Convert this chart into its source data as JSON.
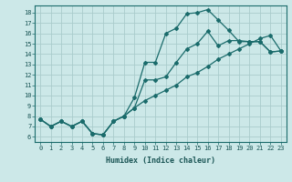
{
  "xlabel": "Humidex (Indice chaleur)",
  "background_color": "#cce8e8",
  "grid_color": "#aacccc",
  "line_color": "#1a6b6b",
  "marker": "D",
  "markersize": 2.0,
  "linewidth": 0.9,
  "xlim": [
    -0.5,
    23.5
  ],
  "ylim": [
    5.5,
    18.7
  ],
  "xticks": [
    0,
    1,
    2,
    3,
    4,
    5,
    6,
    7,
    8,
    9,
    10,
    11,
    12,
    13,
    14,
    15,
    16,
    17,
    18,
    19,
    20,
    21,
    22,
    23
  ],
  "yticks": [
    6,
    7,
    8,
    9,
    10,
    11,
    12,
    13,
    14,
    15,
    16,
    17,
    18
  ],
  "series": [
    {
      "x": [
        0,
        1,
        2,
        3,
        4,
        5,
        6,
        7,
        8,
        9,
        10,
        11,
        12,
        13,
        14,
        15,
        16,
        17,
        18,
        19,
        20,
        21,
        22,
        23
      ],
      "y": [
        7.7,
        7.0,
        7.5,
        7.0,
        7.5,
        6.3,
        6.2,
        7.5,
        8.0,
        8.8,
        9.5,
        10.0,
        10.5,
        11.0,
        11.8,
        12.2,
        12.8,
        13.5,
        14.0,
        14.5,
        15.0,
        15.5,
        15.8,
        14.3
      ]
    },
    {
      "x": [
        0,
        1,
        2,
        3,
        4,
        5,
        6,
        7,
        8,
        9,
        10,
        11,
        12,
        13,
        14,
        15,
        16,
        17,
        18,
        19,
        20,
        21,
        22,
        23
      ],
      "y": [
        7.7,
        7.0,
        7.5,
        7.0,
        7.5,
        6.3,
        6.2,
        7.5,
        8.0,
        8.8,
        11.5,
        11.5,
        11.8,
        13.2,
        14.5,
        15.0,
        16.2,
        14.8,
        15.3,
        15.3,
        15.2,
        15.2,
        14.2,
        14.3
      ]
    },
    {
      "x": [
        0,
        1,
        2,
        3,
        4,
        5,
        6,
        7,
        8,
        9,
        10,
        11,
        12,
        13,
        14,
        15,
        16,
        17,
        18,
        19,
        20,
        21,
        22,
        23
      ],
      "y": [
        7.7,
        7.0,
        7.5,
        7.0,
        7.5,
        6.3,
        6.2,
        7.5,
        8.0,
        9.8,
        13.2,
        13.2,
        16.0,
        16.5,
        17.9,
        18.0,
        18.3,
        17.3,
        16.3,
        15.2,
        15.2,
        15.2,
        14.2,
        14.3
      ]
    }
  ]
}
